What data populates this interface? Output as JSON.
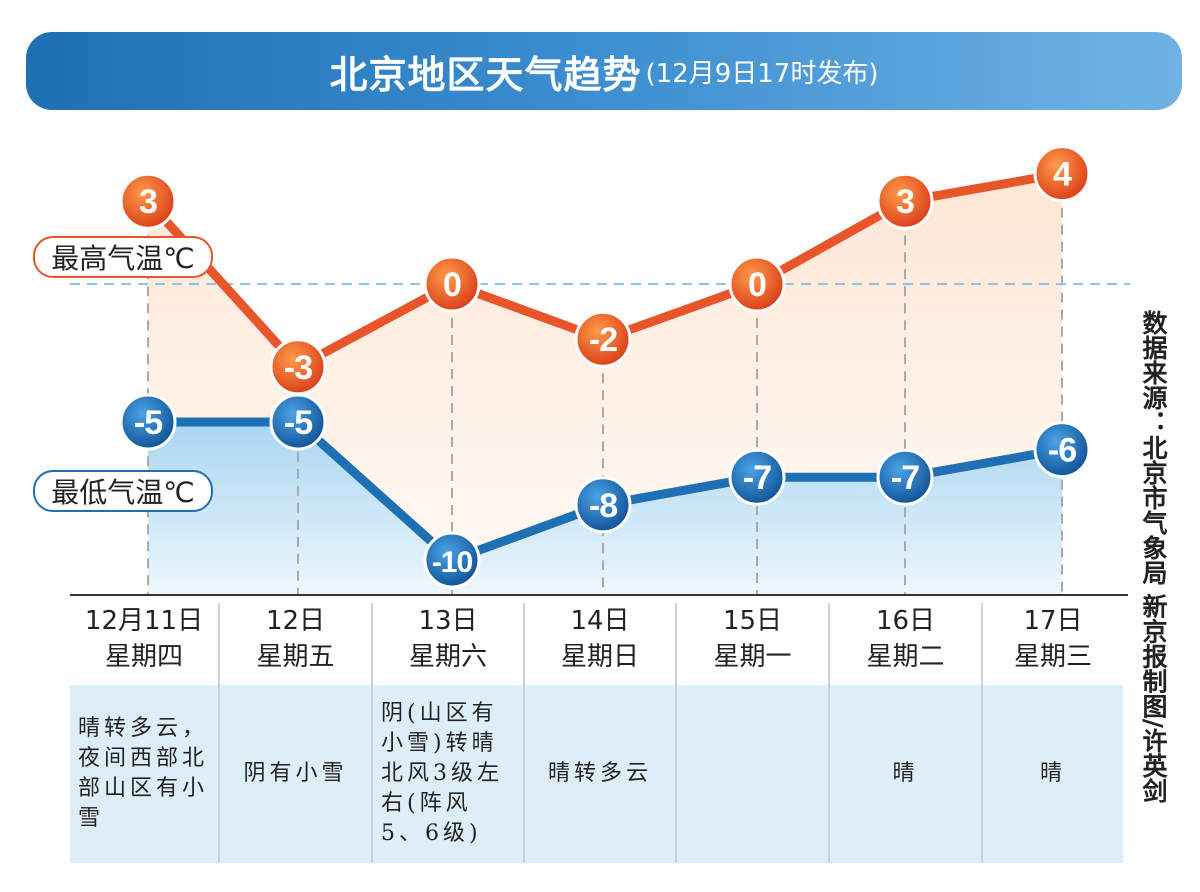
{
  "header": {
    "title": "北京地区天气趋势",
    "subtitle": "(12月9日17时发布)"
  },
  "source": "数据来源：北京市气象局 新京报制图/许英剑",
  "colors": {
    "high": "#e8552a",
    "low": "#1e6fb4",
    "high_fill": "#fde3cf",
    "low_fill": "#a9d6f1",
    "title_bg": "#2f80c4"
  },
  "chart_data": {
    "type": "line",
    "categories": [
      "12月11日 星期四",
      "12日 星期五",
      "13日 星期六",
      "14日 星期日",
      "15日 星期一",
      "16日 星期二",
      "17日 星期三"
    ],
    "series": [
      {
        "name": "最高气温℃",
        "values": [
          3,
          -3,
          0,
          -2,
          0,
          3,
          4
        ]
      },
      {
        "name": "最低气温℃",
        "values": [
          -5,
          -5,
          -10,
          -8,
          -7,
          -7,
          -6
        ]
      }
    ],
    "reference_line": 0,
    "grid": false
  },
  "days": [
    {
      "date": "12月11日",
      "weekday": "星期四",
      "weather": "晴转多云，夜间西部北部山区有小雪"
    },
    {
      "date": "12日",
      "weekday": "星期五",
      "weather": "阴有小雪"
    },
    {
      "date": "13日",
      "weekday": "星期六",
      "weather": "阴(山区有小雪)转晴北风3级左右(阵风5、6级)"
    },
    {
      "date": "14日",
      "weekday": "星期日",
      "weather": "晴转多云"
    },
    {
      "date": "15日",
      "weekday": "星期一",
      "weather": ""
    },
    {
      "date": "16日",
      "weekday": "星期二",
      "weather": "晴"
    },
    {
      "date": "17日",
      "weekday": "星期三",
      "weather": "晴"
    }
  ]
}
